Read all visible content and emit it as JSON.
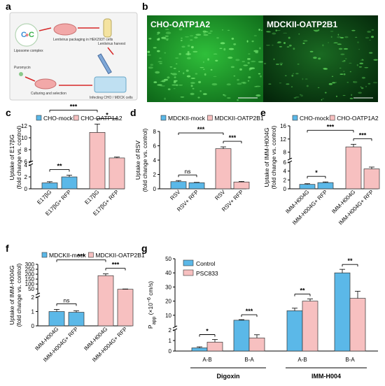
{
  "colors": {
    "mock": "#5bb8e8",
    "oatp": "#f7c0c0",
    "micro": "#1f9a2c",
    "arrow": "#d62828"
  },
  "panel_a": {
    "label": "a",
    "steps": {
      "liposome": "Liposome complex",
      "lentivirus_pack": "Lentivirus packaging in HEK293T cells",
      "harvest": "Lentivirus harvest",
      "infect": "Infecting CHO / MDCK cells",
      "culture": "Culturing and selection",
      "puromycin": "Puromycin"
    }
  },
  "panel_b": {
    "label": "b",
    "left_title": "CHO-OATP1A2",
    "right_title": "MDCKII-OATP2B1"
  },
  "chart_data": [
    {
      "panel": "c",
      "type": "bar",
      "ylabel": "Uptake of E17βG\n(fold change vs. control)",
      "legend": [
        "CHO-mock",
        "CHO-OATP1A2"
      ],
      "categories": [
        "E17βG",
        "E17βG+ RFP",
        "E17βG",
        "E17βG+ RFP"
      ],
      "groups": [
        "mock",
        "mock",
        "oatp",
        "oatp"
      ],
      "values": [
        1.0,
        2.0,
        10.9,
        6.6
      ],
      "errors": [
        0.2,
        0.3,
        1.4,
        0.15
      ],
      "broken_axis": {
        "lower": [
          0,
          4
        ],
        "upper": [
          6,
          12
        ]
      },
      "yticks_lower": [
        0,
        2,
        4
      ],
      "yticks_upper": [
        6,
        8,
        10,
        12
      ],
      "signif": [
        {
          "from": 0,
          "to": 1,
          "label": "**"
        },
        {
          "from": 2,
          "to": 3,
          "label": "*"
        },
        {
          "from": 0,
          "to": 2,
          "label": "***"
        }
      ]
    },
    {
      "panel": "d",
      "type": "bar",
      "ylabel": "Uptake of RSV\n(fold change vs. control)",
      "legend": [
        "MDCKII-mock",
        "MDCKII-OATP2B1"
      ],
      "categories": [
        "RSV",
        "RSV+ RFP",
        "RSV",
        "RSV+ RFP"
      ],
      "groups": [
        "mock",
        "mock",
        "oatp",
        "oatp"
      ],
      "values": [
        1.0,
        0.85,
        5.6,
        0.95
      ],
      "errors": [
        0.15,
        0.05,
        0.25,
        0.08
      ],
      "ylim": [
        0,
        8
      ],
      "yticks": [
        0,
        2,
        4,
        6,
        8
      ],
      "signif": [
        {
          "from": 0,
          "to": 1,
          "label": "ns"
        },
        {
          "from": 2,
          "to": 3,
          "label": "***"
        },
        {
          "from": 0,
          "to": 2,
          "label": "***"
        }
      ]
    },
    {
      "panel": "e",
      "type": "bar",
      "ylabel": "Uptake of IMM-H004G\n(fold change vs. control)",
      "legend": [
        "CHO-mock",
        "CHO-OATP1A2"
      ],
      "categories": [
        "IMM-H004G",
        "IMM-H004G+ RFP",
        "IMM-H004G",
        "IMM-H004G+ RFP"
      ],
      "groups": [
        "mock",
        "mock",
        "oatp",
        "oatp"
      ],
      "values": [
        1.0,
        1.4,
        9.6,
        4.5
      ],
      "errors": [
        0.15,
        0.15,
        0.8,
        0.4
      ],
      "broken_axis": {
        "lower": [
          0,
          6
        ],
        "upper": [
          6,
          16
        ]
      },
      "yticks_lower": [
        0,
        2,
        4,
        6
      ],
      "yticks_upper": [
        8,
        12,
        16
      ],
      "signif": [
        {
          "from": 0,
          "to": 1,
          "label": "*"
        },
        {
          "from": 2,
          "to": 3,
          "label": "***"
        },
        {
          "from": 0,
          "to": 2,
          "label": "***"
        }
      ]
    },
    {
      "panel": "f",
      "type": "bar",
      "ylabel": "Uptake of IMM-H004G\n(fold change vs. control)",
      "legend": [
        "MDCKII-mock",
        "MDCKII-OATP2B1"
      ],
      "categories": [
        "IMM-H004G",
        "IMM-H004G+ RFP",
        "IMM-H004G",
        "IMM-H004G+ RFP"
      ],
      "groups": [
        "mock",
        "mock",
        "oatp",
        "oatp"
      ],
      "values": [
        1.0,
        0.95,
        185,
        47
      ],
      "errors": [
        0.15,
        0.1,
        18,
        3
      ],
      "broken_axis": {
        "lower": [
          0,
          2
        ],
        "upper": [
          2,
          300
        ]
      },
      "yticks_lower": [
        0,
        1,
        2
      ],
      "yticks_upper": [
        50,
        100,
        150,
        200,
        250,
        300
      ],
      "signif": [
        {
          "from": 0,
          "to": 1,
          "label": "ns"
        },
        {
          "from": 2,
          "to": 3,
          "label": "***"
        },
        {
          "from": 0,
          "to": 2,
          "label": "***"
        }
      ]
    },
    {
      "panel": "g",
      "type": "bar",
      "ylabel": "P_app (×10⁻⁶ cm/s)",
      "ylabel_main": "P",
      "ylabel_sub": "app",
      "ylabel_rest": " (×10",
      "ylabel_sup": "−6",
      "ylabel_end": " cm/s)",
      "legend": [
        "Control",
        "PSC833"
      ],
      "categories": [
        "A-B",
        "B-A",
        "A-B",
        "B-A"
      ],
      "group_labels": [
        "Digoxin",
        "IMM-H004"
      ],
      "series": [
        {
          "name": "Control",
          "values": [
            0.3,
            6.5,
            13.2,
            40
          ],
          "errors": [
            0.1,
            0.4,
            1.8,
            2.5
          ]
        },
        {
          "name": "PSC833",
          "values": [
            0.85,
            1.25,
            20,
            22
          ],
          "errors": [
            0.25,
            0.3,
            1.5,
            5
          ]
        }
      ],
      "broken_axis": {
        "lower": [
          0,
          2
        ],
        "upper": [
          2,
          50
        ]
      },
      "yticks_lower": [
        0,
        1,
        2
      ],
      "yticks_upper": [
        10,
        20,
        30,
        40,
        50
      ],
      "signif": [
        "*",
        "***",
        "**",
        "**"
      ]
    }
  ]
}
